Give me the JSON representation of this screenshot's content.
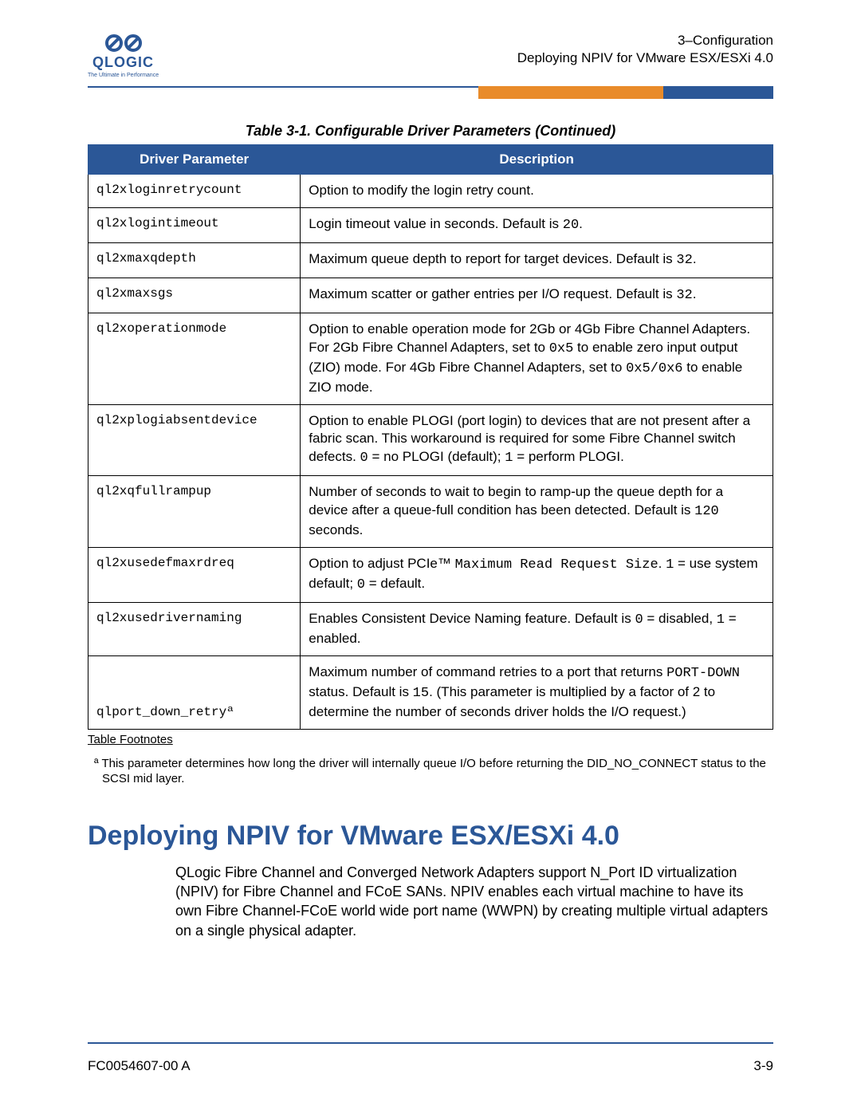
{
  "header": {
    "chapter": "3–Configuration",
    "section": "Deploying NPIV for VMware ESX/ESXi 4.0",
    "logo_word": "QLOGIC",
    "logo_tag": "The Ultimate in Performance"
  },
  "table": {
    "caption": "Table 3-1. Configurable Driver Parameters (Continued)",
    "col1": "Driver Parameter",
    "col2": "Description",
    "rows": [
      {
        "param": "ql2xloginretrycount",
        "desc": "Option to modify the login retry count."
      },
      {
        "param": "ql2xlogintimeout",
        "desc": "Login timeout value in seconds. Default is <span class=\"mono\">20</span>."
      },
      {
        "param": "ql2xmaxqdepth",
        "desc": "Maximum queue depth to report for target devices. Default is <span class=\"mono\">32</span>."
      },
      {
        "param": "ql2xmaxsgs",
        "desc": "Maximum scatter or gather entries per I/O request. Default is <span class=\"mono\">32</span>."
      },
      {
        "param": "ql2xoperationmode",
        "desc": "Option to enable operation mode for 2Gb or 4Gb Fibre Channel Adapters. For 2Gb Fibre Channel Adapters, set to <span class=\"mono\">0x5</span> to enable zero input output (ZIO) mode. For 4Gb Fibre Channel Adapters, set to <span class=\"mono\">0x5/0x6</span> to enable ZIO mode."
      },
      {
        "param": "ql2xplogiabsentdevice",
        "desc": "Option to enable PLOGI (port login) to devices that are not present after a fabric scan. This workaround is required for some Fibre Channel switch defects. <span class=\"mono\">0</span> = no PLOGI (default); <span class=\"mono\">1</span> = perform PLOGI."
      },
      {
        "param": "ql2xqfullrampup",
        "desc": "Number of seconds to wait to begin to ramp-up the queue depth for a device after a queue-full condition has been detected. Default is <span class=\"mono\">120</span> seconds."
      },
      {
        "param": "ql2xusedefmaxrdreq",
        "desc": "Option to adjust PCIe™ <span class=\"mono\">Maximum Read Request Size</span>. <span class=\"mono\">1</span> = use system default; <span class=\"mono\">0</span> = default."
      },
      {
        "param": "ql2xusedrivernaming",
        "desc": "Enables Consistent Device Naming feature. Default is <span class=\"mono\">0</span> = disabled, <span class=\"mono\">1</span> = enabled."
      },
      {
        "param": "qlport_down_retryª",
        "desc": "Maximum number of command retries to a port that returns <span class=\"mono\">PORT-DOWN</span> status. Default is <span class=\"mono\">15</span>. (This parameter is multiplied by a factor of 2 to determine the number of seconds driver holds the I/O request.)",
        "last": true
      }
    ],
    "footnote_label": "Table Footnotes",
    "footnote_text": "ª This parameter determines how long the driver will internally queue I/O before returning the DID_NO_CONNECT status to the SCSI mid layer."
  },
  "section": {
    "heading": "Deploying NPIV for VMware ESX/ESXi 4.0",
    "paragraph": "QLogic Fibre Channel and Converged Network Adapters support N_Port ID virtualization (NPIV) for Fibre Channel and FCoE SANs. NPIV enables each virtual machine to have its own Fibre Channel-FCoE world wide port name (WWPN) by creating multiple virtual adapters on a single physical adapter."
  },
  "footer": {
    "doc": "FC0054607-00  A",
    "page": "3-9"
  },
  "colors": {
    "brand_blue": "#2b5797",
    "accent_orange": "#e98b2a"
  }
}
